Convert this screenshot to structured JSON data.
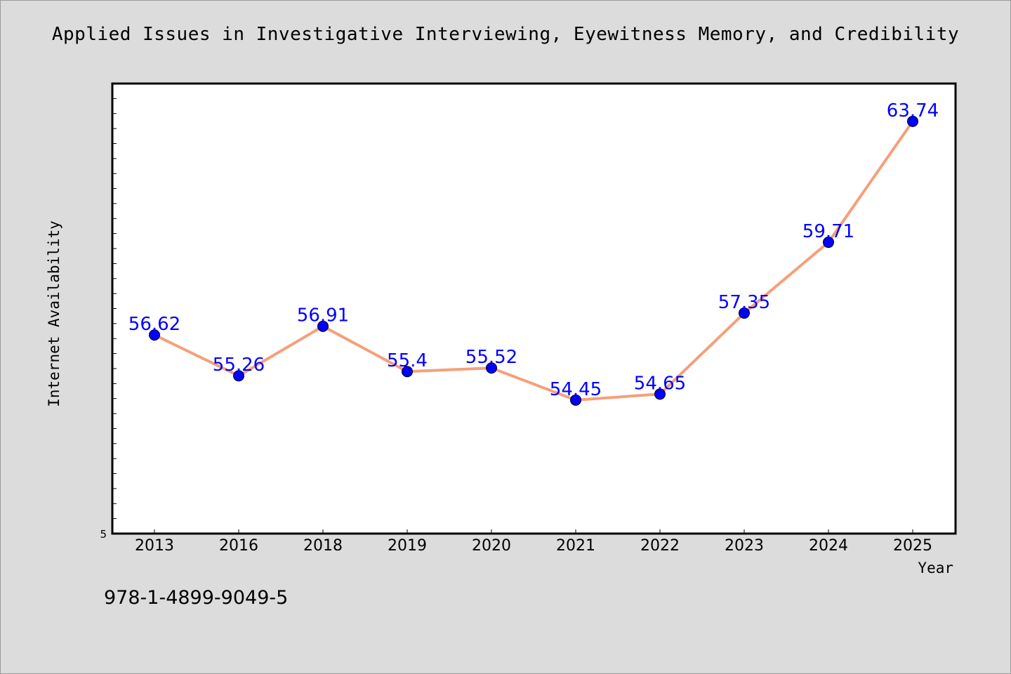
{
  "title": "Applied Issues in Investigative Interviewing, Eyewitness Memory, and Credibility",
  "footer_text": "978-1-4899-9049-5",
  "colors": {
    "background": "#dcdcdc",
    "plot_background": "#ffffff",
    "line": "#f4a07a",
    "marker": "#0000ff",
    "label": "#0000ff"
  },
  "chart_data": {
    "type": "line",
    "title": "Applied Issues in Investigative Interviewing, Eyewitness Memory, and Credibility",
    "xlabel": "Year",
    "ylabel": "Internet Availability",
    "categories": [
      "2013",
      "2016",
      "2018",
      "2019",
      "2020",
      "2021",
      "2022",
      "2023",
      "2024",
      "2025"
    ],
    "series": [
      {
        "values": [
          56.62,
          55.26,
          56.91,
          55.4,
          55.52,
          54.45,
          54.65,
          57.35,
          59.71,
          63.74
        ]
      }
    ],
    "data_labels": [
      "56.62",
      "55.26",
      "56.91",
      "55.4",
      "55.52",
      "54.45",
      "54.65",
      "57.35",
      "59.71",
      "63.74"
    ],
    "ylim": [
      50,
      65
    ],
    "y_tick_labels": [
      "5"
    ],
    "legend": "none",
    "grid": false,
    "marker": "circle"
  }
}
